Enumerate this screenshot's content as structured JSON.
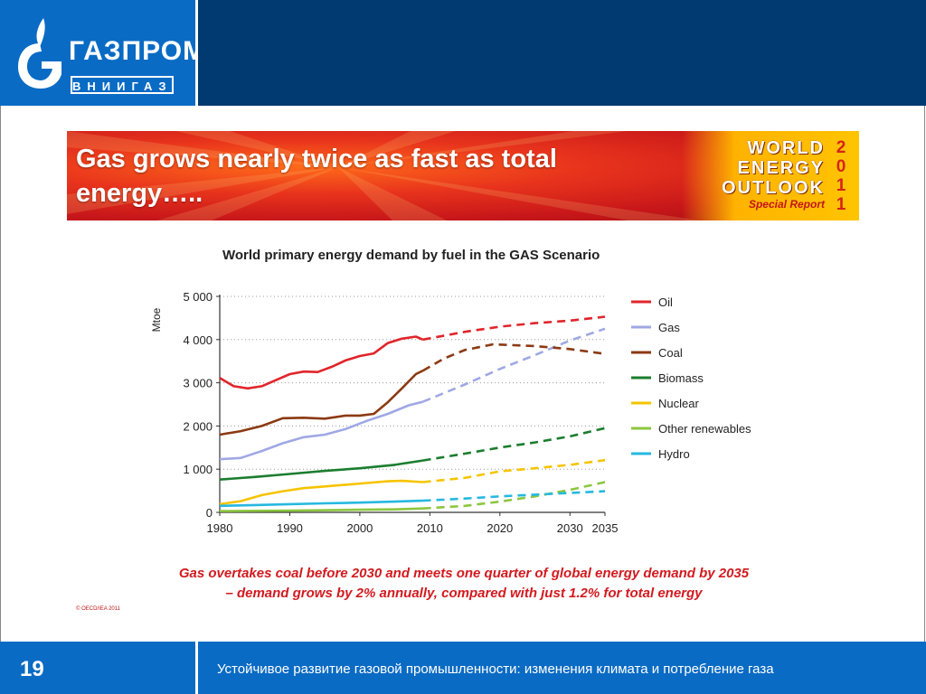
{
  "header": {
    "logo_name": "ГАЗПРОМ",
    "logo_sub": "ВНИИГАЗ",
    "logo_icon": "gazprom-flame-g-icon",
    "color_logo": "#0a6bc4",
    "color_bar": "#003a70"
  },
  "banner": {
    "title": "Gas grows nearly twice as fast as total energy…..",
    "weo_line1": "WORLD",
    "weo_line2": "ENERGY",
    "weo_line3": "OUTLOOK",
    "weo_special": "Special Report",
    "year_digits": [
      "2",
      "0",
      "1",
      "1"
    ]
  },
  "chart_data": {
    "type": "line",
    "title": "World primary energy demand by fuel in the GAS Scenario",
    "ylabel": "Mtoe",
    "xlabel": "",
    "xlim": [
      1980,
      2035
    ],
    "ylim": [
      0,
      5000
    ],
    "x_ticks": [
      "1980",
      "1990",
      "2000",
      "2010",
      "2020",
      "2030",
      "2035"
    ],
    "y_ticks": [
      "0",
      "1 000",
      "2 000",
      "3 000",
      "4 000",
      "5 000"
    ],
    "y_tick_values": [
      0,
      1000,
      2000,
      3000,
      4000,
      5000
    ],
    "x_tick_values": [
      1980,
      1990,
      2000,
      2010,
      2020,
      2030,
      2035
    ],
    "grid": "horizontal dotted",
    "legend_position": "right",
    "historical_style": "solid",
    "projection_style": "dashed",
    "series": [
      {
        "name": "Oil",
        "color": "#e0252b",
        "historical": [
          [
            1980,
            3110
          ],
          [
            1982,
            2920
          ],
          [
            1984,
            2870
          ],
          [
            1986,
            2920
          ],
          [
            1988,
            3060
          ],
          [
            1990,
            3200
          ],
          [
            1992,
            3260
          ],
          [
            1994,
            3250
          ],
          [
            1996,
            3370
          ],
          [
            1998,
            3520
          ],
          [
            2000,
            3620
          ],
          [
            2002,
            3680
          ],
          [
            2004,
            3920
          ],
          [
            2006,
            4020
          ],
          [
            2008,
            4070
          ],
          [
            2009,
            4000
          ]
        ],
        "projection": [
          [
            2009,
            4000
          ],
          [
            2015,
            4180
          ],
          [
            2020,
            4300
          ],
          [
            2025,
            4380
          ],
          [
            2030,
            4440
          ],
          [
            2035,
            4530
          ]
        ]
      },
      {
        "name": "Gas",
        "color": "#9fa8e4",
        "historical": [
          [
            1980,
            1230
          ],
          [
            1983,
            1260
          ],
          [
            1986,
            1420
          ],
          [
            1989,
            1600
          ],
          [
            1992,
            1740
          ],
          [
            1995,
            1800
          ],
          [
            1998,
            1930
          ],
          [
            2001,
            2120
          ],
          [
            2004,
            2280
          ],
          [
            2007,
            2480
          ],
          [
            2009,
            2560
          ]
        ],
        "projection": [
          [
            2009,
            2560
          ],
          [
            2015,
            2960
          ],
          [
            2020,
            3320
          ],
          [
            2025,
            3640
          ],
          [
            2030,
            3980
          ],
          [
            2035,
            4250
          ]
        ]
      },
      {
        "name": "Coal",
        "color": "#8b3a13",
        "historical": [
          [
            1980,
            1800
          ],
          [
            1983,
            1880
          ],
          [
            1986,
            2000
          ],
          [
            1989,
            2180
          ],
          [
            1992,
            2190
          ],
          [
            1995,
            2170
          ],
          [
            1998,
            2240
          ],
          [
            2000,
            2240
          ],
          [
            2002,
            2280
          ],
          [
            2004,
            2550
          ],
          [
            2006,
            2870
          ],
          [
            2008,
            3200
          ],
          [
            2009,
            3280
          ]
        ],
        "projection": [
          [
            2009,
            3280
          ],
          [
            2012,
            3560
          ],
          [
            2015,
            3760
          ],
          [
            2019,
            3890
          ],
          [
            2022,
            3870
          ],
          [
            2025,
            3850
          ],
          [
            2030,
            3780
          ],
          [
            2035,
            3670
          ]
        ]
      },
      {
        "name": "Biomass",
        "color": "#1b7d2e",
        "historical": [
          [
            1980,
            760
          ],
          [
            1985,
            820
          ],
          [
            1990,
            890
          ],
          [
            1995,
            960
          ],
          [
            2000,
            1020
          ],
          [
            2005,
            1100
          ],
          [
            2009,
            1200
          ]
        ],
        "projection": [
          [
            2009,
            1200
          ],
          [
            2015,
            1360
          ],
          [
            2020,
            1500
          ],
          [
            2025,
            1620
          ],
          [
            2030,
            1760
          ],
          [
            2035,
            1950
          ]
        ]
      },
      {
        "name": "Nuclear",
        "color": "#f5c400",
        "historical": [
          [
            1980,
            190
          ],
          [
            1983,
            260
          ],
          [
            1986,
            400
          ],
          [
            1989,
            490
          ],
          [
            1992,
            560
          ],
          [
            1995,
            600
          ],
          [
            1998,
            640
          ],
          [
            2001,
            680
          ],
          [
            2004,
            720
          ],
          [
            2006,
            730
          ],
          [
            2009,
            700
          ]
        ],
        "projection": [
          [
            2009,
            700
          ],
          [
            2015,
            800
          ],
          [
            2020,
            950
          ],
          [
            2025,
            1020
          ],
          [
            2030,
            1100
          ],
          [
            2035,
            1210
          ]
        ]
      },
      {
        "name": "Other renewables",
        "color": "#8cc63f",
        "historical": [
          [
            1980,
            30
          ],
          [
            1990,
            40
          ],
          [
            2000,
            60
          ],
          [
            2005,
            70
          ],
          [
            2009,
            90
          ]
        ],
        "projection": [
          [
            2009,
            90
          ],
          [
            2015,
            150
          ],
          [
            2020,
            250
          ],
          [
            2025,
            370
          ],
          [
            2030,
            520
          ],
          [
            2035,
            700
          ]
        ]
      },
      {
        "name": "Hydro",
        "color": "#26b8e0",
        "historical": [
          [
            1980,
            150
          ],
          [
            1985,
            170
          ],
          [
            1990,
            190
          ],
          [
            1995,
            210
          ],
          [
            2000,
            225
          ],
          [
            2005,
            250
          ],
          [
            2009,
            270
          ]
        ],
        "projection": [
          [
            2009,
            270
          ],
          [
            2015,
            320
          ],
          [
            2020,
            370
          ],
          [
            2025,
            410
          ],
          [
            2030,
            450
          ],
          [
            2035,
            490
          ]
        ]
      }
    ]
  },
  "caption": {
    "line1": "Gas overtakes coal before 2030 and meets one quarter of global energy demand by 2035",
    "line2": "– demand grows by 2% annually, compared with just 1.2% for total energy"
  },
  "copyright": "© OECD/IEA 2011",
  "footer": {
    "page_number": "19",
    "text": "Устойчивое развитие газовой  промышленности: изменения климата и потребление газа"
  }
}
